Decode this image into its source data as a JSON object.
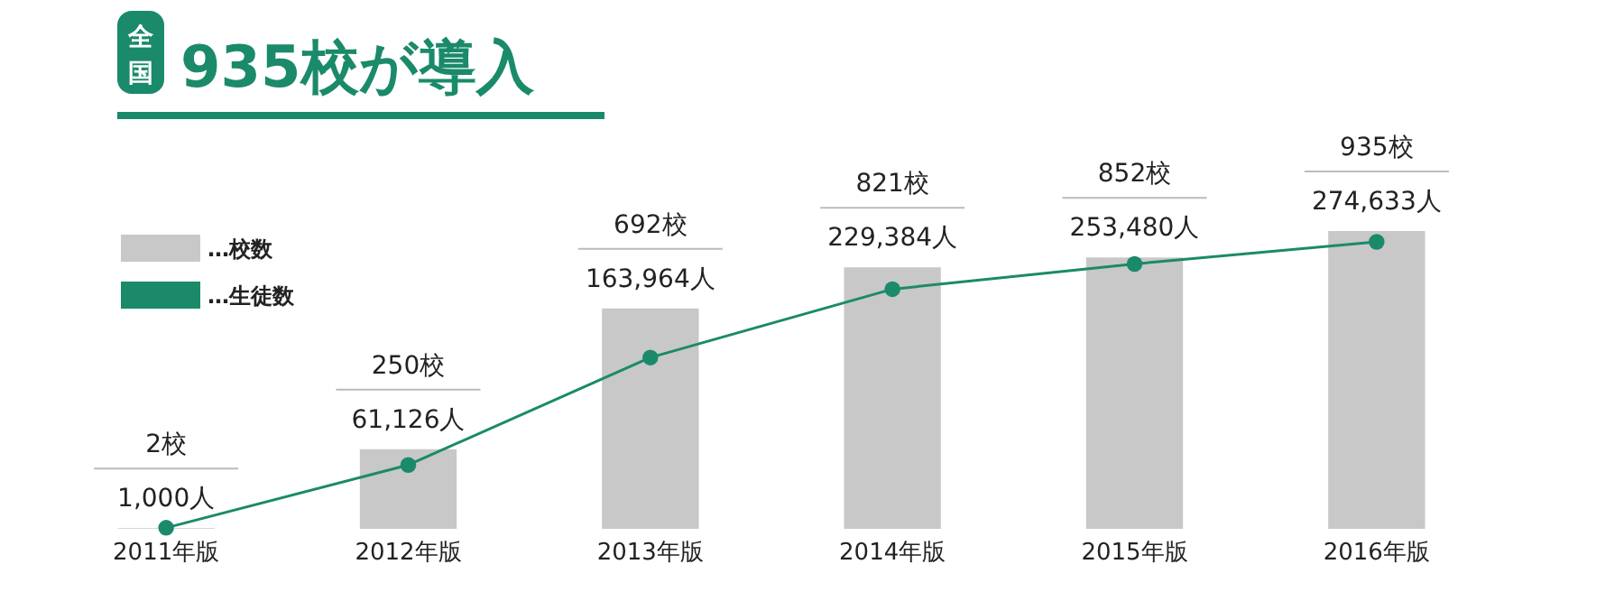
{
  "chart_data": {
    "type": "bar",
    "title": "935校が導入",
    "subtitle": "全国",
    "categories": [
      "2011年版",
      "2012年版",
      "2013年版",
      "2014年版",
      "2015年版",
      "2016年版"
    ],
    "series": [
      {
        "name": "…校数",
        "color": "#c8c8c8",
        "values": [
          2,
          250,
          692,
          821,
          852,
          935
        ],
        "value_labels": [
          "2校",
          "250校",
          "692校",
          "821校",
          "852校",
          "935校"
        ]
      },
      {
        "name": "…生徒数",
        "type": "line",
        "axis": "y2",
        "color": "#1a8a6a",
        "values": [
          1000,
          61126,
          163964,
          229384,
          253480,
          274633
        ],
        "value_labels": [
          "1,000人",
          "61,126人",
          "163,964人",
          "229,384人",
          "253,480人",
          "274,633人"
        ]
      }
    ],
    "marker": "circle",
    "legend": "top left",
    "tick_labels": "x"
  }
}
